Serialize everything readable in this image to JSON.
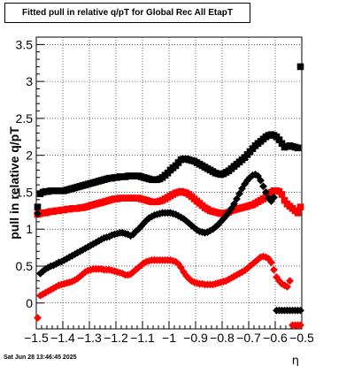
{
  "chart_data": {
    "type": "scatter",
    "title": "Fitted pull in relative q/pT for Global Rec All EtapT",
    "xlabel": "η",
    "ylabel": "pull in relative q/pT",
    "xlim": [
      -1.5,
      -0.5
    ],
    "ylim": [
      -0.35,
      3.6
    ],
    "xticks": [
      "−1.5",
      "−1.4",
      "−1.3",
      "−1.2",
      "−1.1",
      "−1",
      "−0.9",
      "−0.8",
      "−0.7",
      "−0.6",
      "−0.5"
    ],
    "xtick_values": [
      -1.5,
      -1.4,
      -1.3,
      -1.2,
      -1.1,
      -1.0,
      -0.9,
      -0.8,
      -0.7,
      -0.6,
      -0.5
    ],
    "yticks": [
      "0",
      "0.5",
      "1",
      "1.5",
      "2",
      "2.5",
      "3",
      "3.5"
    ],
    "ytick_values": [
      0,
      0.5,
      1,
      1.5,
      2,
      2.5,
      3,
      3.5
    ],
    "grid": true,
    "series": [
      {
        "marker": "square",
        "color": "#000000",
        "x": [
          -1.495,
          -1.485,
          -1.475,
          -1.465,
          -1.455,
          -1.445,
          -1.435,
          -1.425,
          -1.415,
          -1.405,
          -1.395,
          -1.385,
          -1.375,
          -1.365,
          -1.355,
          -1.345,
          -1.335,
          -1.325,
          -1.315,
          -1.305,
          -1.295,
          -1.285,
          -1.275,
          -1.265,
          -1.255,
          -1.245,
          -1.235,
          -1.225,
          -1.215,
          -1.205,
          -1.195,
          -1.185,
          -1.175,
          -1.165,
          -1.155,
          -1.145,
          -1.135,
          -1.125,
          -1.115,
          -1.105,
          -1.095,
          -1.085,
          -1.075,
          -1.065,
          -1.055,
          -1.045,
          -1.035,
          -1.025,
          -1.015,
          -1.005,
          -0.995,
          -0.985,
          -0.975,
          -0.965,
          -0.955,
          -0.945,
          -0.935,
          -0.925,
          -0.915,
          -0.905,
          -0.895,
          -0.885,
          -0.875,
          -0.865,
          -0.855,
          -0.845,
          -0.835,
          -0.825,
          -0.815,
          -0.805,
          -0.795,
          -0.785,
          -0.775,
          -0.765,
          -0.755,
          -0.745,
          -0.735,
          -0.725,
          -0.715,
          -0.705,
          -0.695,
          -0.685,
          -0.675,
          -0.665,
          -0.655,
          -0.645,
          -0.635,
          -0.625,
          -0.615,
          -0.605,
          -0.595,
          -0.585,
          -0.575,
          -0.565,
          -0.555,
          -0.545,
          -0.535,
          -0.525,
          -0.515,
          -0.505
        ],
        "y": [
          1.3,
          1.48,
          1.5,
          1.51,
          1.51,
          1.52,
          1.52,
          1.52,
          1.52,
          1.52,
          1.52,
          1.53,
          1.54,
          1.55,
          1.56,
          1.57,
          1.58,
          1.59,
          1.6,
          1.61,
          1.62,
          1.63,
          1.64,
          1.65,
          1.66,
          1.67,
          1.68,
          1.69,
          1.69,
          1.7,
          1.7,
          1.71,
          1.71,
          1.71,
          1.72,
          1.72,
          1.72,
          1.72,
          1.72,
          1.71,
          1.7,
          1.69,
          1.68,
          1.67,
          1.67,
          1.67,
          1.68,
          1.7,
          1.73,
          1.76,
          1.8,
          1.83,
          1.86,
          1.9,
          1.94,
          1.95,
          1.95,
          1.94,
          1.93,
          1.92,
          1.9,
          1.88,
          1.86,
          1.84,
          1.82,
          1.8,
          1.78,
          1.76,
          1.75,
          1.74,
          1.75,
          1.77,
          1.79,
          1.82,
          1.85,
          1.88,
          1.91,
          1.94,
          1.97,
          2.01,
          2.05,
          2.09,
          2.13,
          2.16,
          2.19,
          2.22,
          2.25,
          2.27,
          2.28,
          2.27,
          2.25,
          2.21,
          2.16,
          2.11,
          2.12,
          2.13,
          2.12,
          2.11,
          2.1,
          3.2
        ]
      },
      {
        "marker": "square",
        "color": "#ff0000",
        "x": [
          -1.495,
          -1.485,
          -1.475,
          -1.465,
          -1.455,
          -1.445,
          -1.435,
          -1.425,
          -1.415,
          -1.405,
          -1.395,
          -1.385,
          -1.375,
          -1.365,
          -1.355,
          -1.345,
          -1.335,
          -1.325,
          -1.315,
          -1.305,
          -1.295,
          -1.285,
          -1.275,
          -1.265,
          -1.255,
          -1.245,
          -1.235,
          -1.225,
          -1.215,
          -1.205,
          -1.195,
          -1.185,
          -1.175,
          -1.165,
          -1.155,
          -1.145,
          -1.135,
          -1.125,
          -1.115,
          -1.105,
          -1.095,
          -1.085,
          -1.075,
          -1.065,
          -1.055,
          -1.045,
          -1.035,
          -1.025,
          -1.015,
          -1.005,
          -0.995,
          -0.985,
          -0.975,
          -0.965,
          -0.955,
          -0.945,
          -0.935,
          -0.925,
          -0.915,
          -0.905,
          -0.895,
          -0.885,
          -0.875,
          -0.865,
          -0.855,
          -0.845,
          -0.835,
          -0.825,
          -0.815,
          -0.805,
          -0.795,
          -0.785,
          -0.775,
          -0.765,
          -0.755,
          -0.745,
          -0.735,
          -0.725,
          -0.715,
          -0.705,
          -0.695,
          -0.685,
          -0.675,
          -0.665,
          -0.655,
          -0.645,
          -0.635,
          -0.625,
          -0.615,
          -0.605,
          -0.595,
          -0.585,
          -0.575,
          -0.565,
          -0.555,
          -0.545,
          -0.535,
          -0.525,
          -0.515,
          -0.505
        ],
        "y": [
          1.2,
          1.21,
          1.22,
          1.22,
          1.23,
          1.24,
          1.24,
          1.25,
          1.25,
          1.26,
          1.26,
          1.27,
          1.27,
          1.28,
          1.28,
          1.28,
          1.29,
          1.29,
          1.3,
          1.31,
          1.32,
          1.33,
          1.34,
          1.35,
          1.36,
          1.37,
          1.38,
          1.39,
          1.4,
          1.41,
          1.41,
          1.42,
          1.42,
          1.42,
          1.42,
          1.42,
          1.42,
          1.42,
          1.42,
          1.41,
          1.4,
          1.39,
          1.38,
          1.37,
          1.37,
          1.37,
          1.38,
          1.39,
          1.41,
          1.43,
          1.45,
          1.47,
          1.49,
          1.5,
          1.51,
          1.5,
          1.49,
          1.47,
          1.44,
          1.41,
          1.38,
          1.35,
          1.32,
          1.29,
          1.27,
          1.25,
          1.24,
          1.23,
          1.22,
          1.21,
          1.21,
          1.22,
          1.23,
          1.25,
          1.26,
          1.27,
          1.28,
          1.29,
          1.3,
          1.31,
          1.32,
          1.33,
          1.35,
          1.37,
          1.39,
          1.41,
          1.44,
          1.47,
          1.5,
          1.52,
          1.52,
          1.51,
          1.47,
          1.39,
          1.34,
          1.31,
          1.28,
          1.25,
          1.22,
          1.3
        ]
      },
      {
        "marker": "diamond",
        "color": "#000000",
        "x": [
          -1.495,
          -1.485,
          -1.475,
          -1.465,
          -1.455,
          -1.445,
          -1.435,
          -1.425,
          -1.415,
          -1.405,
          -1.395,
          -1.385,
          -1.375,
          -1.365,
          -1.355,
          -1.345,
          -1.335,
          -1.325,
          -1.315,
          -1.305,
          -1.295,
          -1.285,
          -1.275,
          -1.265,
          -1.255,
          -1.245,
          -1.235,
          -1.225,
          -1.215,
          -1.205,
          -1.195,
          -1.185,
          -1.175,
          -1.165,
          -1.155,
          -1.145,
          -1.135,
          -1.125,
          -1.115,
          -1.105,
          -1.095,
          -1.085,
          -1.075,
          -1.065,
          -1.055,
          -1.045,
          -1.035,
          -1.025,
          -1.015,
          -1.005,
          -0.995,
          -0.985,
          -0.975,
          -0.965,
          -0.955,
          -0.945,
          -0.935,
          -0.925,
          -0.915,
          -0.905,
          -0.895,
          -0.885,
          -0.875,
          -0.865,
          -0.855,
          -0.845,
          -0.835,
          -0.825,
          -0.815,
          -0.805,
          -0.795,
          -0.785,
          -0.775,
          -0.765,
          -0.755,
          -0.745,
          -0.735,
          -0.725,
          -0.715,
          -0.705,
          -0.695,
          -0.685,
          -0.675,
          -0.665,
          -0.655,
          -0.645,
          -0.635,
          -0.625,
          -0.615,
          -0.605,
          -0.595,
          -0.585,
          -0.575,
          -0.565,
          -0.555,
          -0.545,
          -0.535,
          -0.525,
          -0.515,
          -0.505
        ],
        "y": [
          1.21,
          0.4,
          0.43,
          0.46,
          0.48,
          0.5,
          0.51,
          0.53,
          0.55,
          0.56,
          0.58,
          0.6,
          0.62,
          0.64,
          0.66,
          0.68,
          0.7,
          0.72,
          0.74,
          0.76,
          0.78,
          0.8,
          0.82,
          0.84,
          0.86,
          0.88,
          0.89,
          0.9,
          0.92,
          0.93,
          0.94,
          0.95,
          0.95,
          0.94,
          0.93,
          0.91,
          0.93,
          0.97,
          1.0,
          1.04,
          1.08,
          1.12,
          1.15,
          1.17,
          1.19,
          1.2,
          1.21,
          1.22,
          1.22,
          1.22,
          1.22,
          1.21,
          1.2,
          1.18,
          1.16,
          1.14,
          1.11,
          1.08,
          1.05,
          1.02,
          0.99,
          0.97,
          0.96,
          0.95,
          0.96,
          0.98,
          1.0,
          1.03,
          1.06,
          1.1,
          1.14,
          1.18,
          1.23,
          1.28,
          1.34,
          1.41,
          1.48,
          1.55,
          1.61,
          1.66,
          1.7,
          1.73,
          1.74,
          1.72,
          1.66,
          1.58,
          1.5,
          1.42,
          1.38,
          1.43,
          -0.1,
          -0.1,
          -0.1,
          -0.1,
          -0.1,
          -0.1,
          -0.1,
          -0.1,
          -0.1,
          -0.1
        ]
      },
      {
        "marker": "diamond",
        "color": "#ff0000",
        "x": [
          -1.495,
          -1.485,
          -1.475,
          -1.465,
          -1.455,
          -1.445,
          -1.435,
          -1.425,
          -1.415,
          -1.405,
          -1.395,
          -1.385,
          -1.375,
          -1.365,
          -1.355,
          -1.345,
          -1.335,
          -1.325,
          -1.315,
          -1.305,
          -1.295,
          -1.285,
          -1.275,
          -1.265,
          -1.255,
          -1.245,
          -1.235,
          -1.225,
          -1.215,
          -1.205,
          -1.195,
          -1.185,
          -1.175,
          -1.165,
          -1.155,
          -1.145,
          -1.135,
          -1.125,
          -1.115,
          -1.105,
          -1.095,
          -1.085,
          -1.075,
          -1.065,
          -1.055,
          -1.045,
          -1.035,
          -1.025,
          -1.015,
          -1.005,
          -0.995,
          -0.985,
          -0.975,
          -0.965,
          -0.955,
          -0.945,
          -0.935,
          -0.925,
          -0.915,
          -0.905,
          -0.895,
          -0.885,
          -0.875,
          -0.865,
          -0.855,
          -0.845,
          -0.835,
          -0.825,
          -0.815,
          -0.805,
          -0.795,
          -0.785,
          -0.775,
          -0.765,
          -0.755,
          -0.745,
          -0.735,
          -0.725,
          -0.715,
          -0.705,
          -0.695,
          -0.685,
          -0.675,
          -0.665,
          -0.655,
          -0.645,
          -0.635,
          -0.625,
          -0.615,
          -0.605,
          -0.595,
          -0.585,
          -0.575,
          -0.565,
          -0.555,
          -0.545,
          -0.535,
          -0.525,
          -0.515,
          -0.505
        ],
        "y": [
          -0.2,
          0.1,
          0.12,
          0.14,
          0.16,
          0.18,
          0.2,
          0.22,
          0.24,
          0.25,
          0.26,
          0.27,
          0.28,
          0.29,
          0.31,
          0.33,
          0.36,
          0.39,
          0.42,
          0.44,
          0.45,
          0.46,
          0.46,
          0.46,
          0.46,
          0.45,
          0.45,
          0.45,
          0.44,
          0.43,
          0.42,
          0.41,
          0.4,
          0.38,
          0.38,
          0.39,
          0.42,
          0.45,
          0.48,
          0.51,
          0.54,
          0.56,
          0.57,
          0.58,
          0.58,
          0.58,
          0.58,
          0.58,
          0.58,
          0.58,
          0.58,
          0.57,
          0.56,
          0.53,
          0.48,
          0.42,
          0.37,
          0.33,
          0.3,
          0.28,
          0.27,
          0.26,
          0.26,
          0.25,
          0.25,
          0.25,
          0.25,
          0.26,
          0.27,
          0.28,
          0.29,
          0.3,
          0.32,
          0.34,
          0.36,
          0.38,
          0.4,
          0.42,
          0.44,
          0.47,
          0.5,
          0.53,
          0.56,
          0.59,
          0.62,
          0.63,
          0.62,
          0.6,
          0.55,
          0.45,
          0.35,
          0.3,
          0.26,
          0.24,
          0.22,
          0.3,
          -0.3,
          -0.3,
          -0.3,
          -0.3
        ]
      }
    ]
  },
  "timestamp": "Sat Jun 28 13:46:45 2025"
}
